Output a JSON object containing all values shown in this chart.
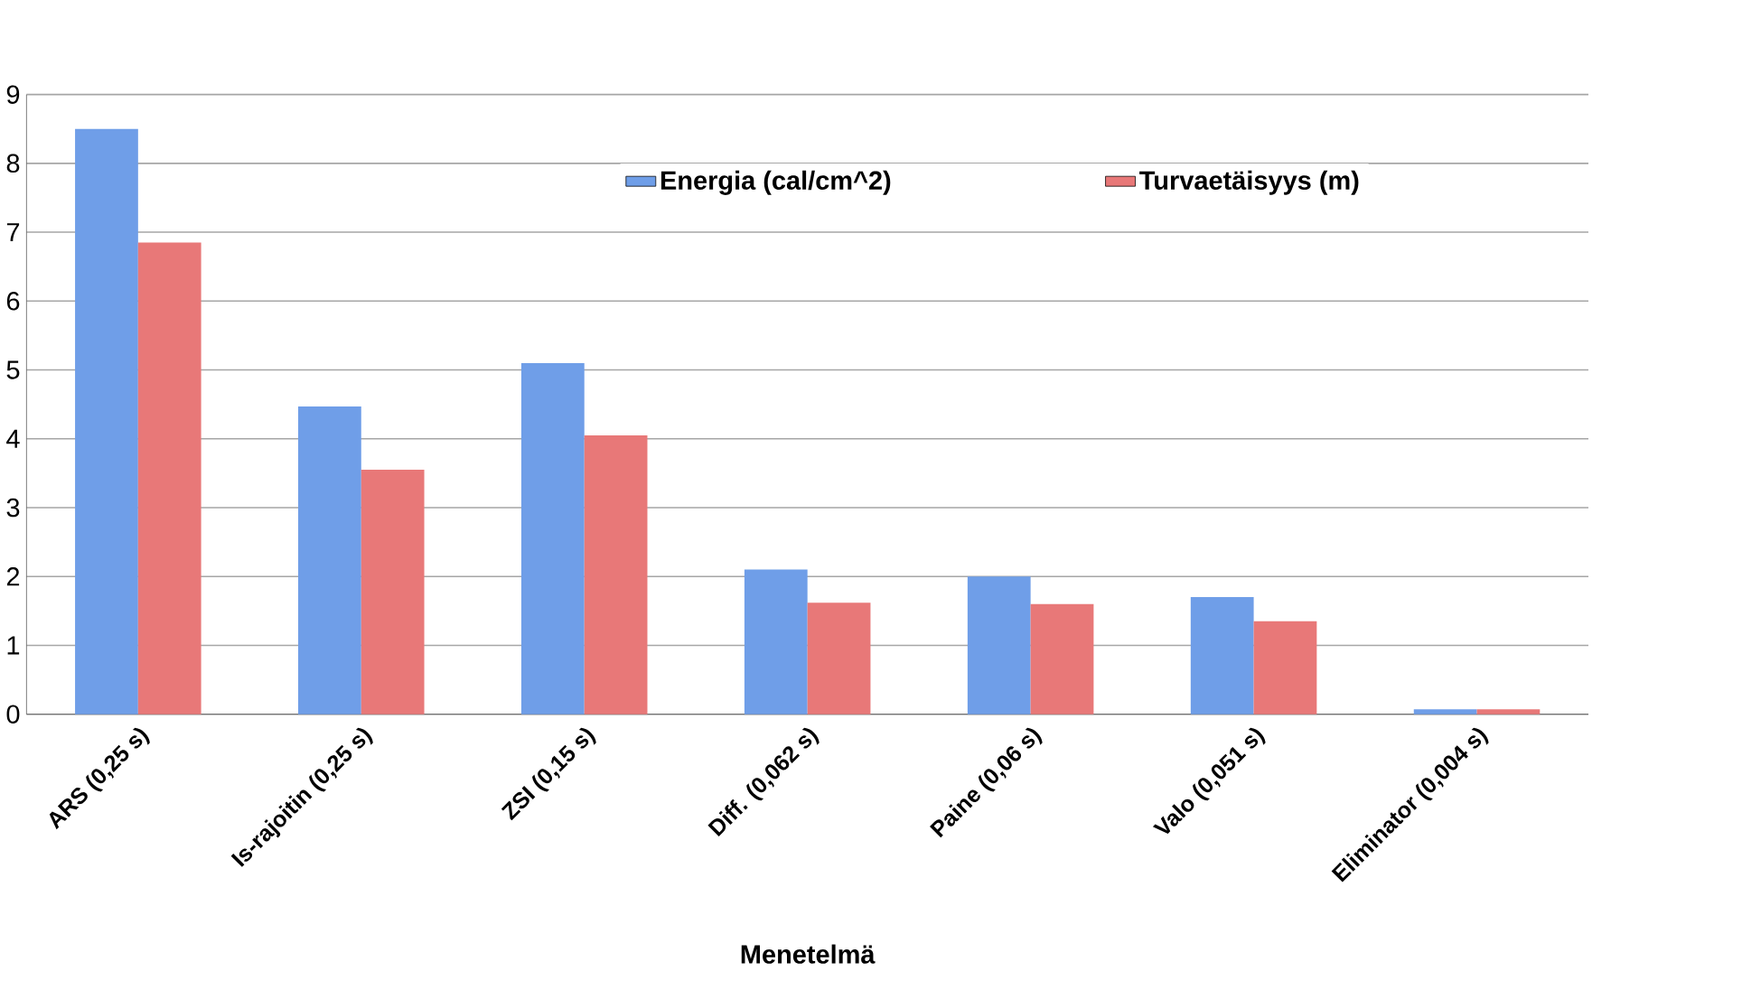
{
  "chart_data": {
    "type": "bar",
    "xlabel": "Menetelmä",
    "categories": [
      "ARS (0,25 s)",
      "Is-rajoitin (0,25 s)",
      "ZSI (0,15 s)",
      "Diff. (0,062 s)",
      "Paine (0,06 s)",
      "Valo (0,051 s)",
      "Eliminator (0,004 s)"
    ],
    "series": [
      {
        "name": "Energia (cal/cm^2)",
        "color": "#6f9ee8",
        "values": [
          8.5,
          4.47,
          5.1,
          2.1,
          2.0,
          1.7,
          0.07
        ]
      },
      {
        "name": "Turvaetäisyys (m)",
        "color": "#e87878",
        "values": [
          6.85,
          3.55,
          4.05,
          1.62,
          1.6,
          1.35,
          0.07
        ]
      }
    ],
    "ylim": [
      0,
      9
    ],
    "yticks": [
      0,
      1,
      2,
      3,
      4,
      5,
      6,
      7,
      8,
      9
    ],
    "grid": "y",
    "legend": "top right"
  }
}
